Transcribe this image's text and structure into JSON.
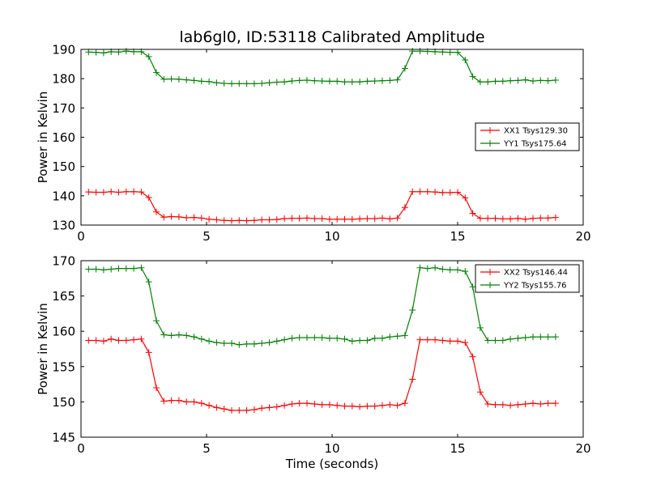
{
  "figure": {
    "title": "lab6gl0, ID:53118 Calibrated Amplitude",
    "xlabel": "Time (seconds)"
  },
  "chart_data": [
    {
      "type": "line",
      "title": "lab6gl0, ID:53118 Calibrated Amplitude",
      "xlabel": "",
      "ylabel": "Power in Kelvin",
      "xlim": [
        0,
        20
      ],
      "ylim": [
        130,
        190
      ],
      "xticks": [
        0,
        5,
        10,
        15,
        20
      ],
      "yticks": [
        130,
        140,
        150,
        160,
        170,
        180,
        190
      ],
      "legend": "center-right",
      "grid": false,
      "x": [
        0.3,
        0.6,
        0.9,
        1.2,
        1.5,
        1.8,
        2.1,
        2.4,
        2.7,
        3.0,
        3.3,
        3.6,
        3.9,
        4.2,
        4.5,
        4.8,
        5.1,
        5.4,
        5.7,
        6.0,
        6.3,
        6.6,
        6.9,
        7.2,
        7.5,
        7.8,
        8.1,
        8.4,
        8.7,
        9.0,
        9.3,
        9.6,
        9.9,
        10.2,
        10.5,
        10.8,
        11.1,
        11.4,
        11.7,
        12.0,
        12.3,
        12.6,
        12.9,
        13.2,
        13.5,
        13.8,
        14.1,
        14.4,
        14.7,
        15.0,
        15.3,
        15.6,
        15.9,
        16.2,
        16.5,
        16.8,
        17.1,
        17.4,
        17.7,
        18.0,
        18.3,
        18.6,
        18.9
      ],
      "series": [
        {
          "name": "XX1 Tsys129.30",
          "color": "#ff0000",
          "values": [
            141.3,
            141.2,
            141.2,
            141.4,
            141.2,
            141.4,
            141.4,
            141.3,
            139.4,
            134.5,
            132.7,
            132.9,
            132.8,
            132.5,
            132.6,
            132.4,
            132.0,
            131.8,
            131.6,
            131.5,
            131.6,
            131.5,
            131.6,
            131.8,
            131.8,
            131.9,
            132.2,
            132.3,
            132.3,
            132.4,
            132.2,
            132.2,
            132.0,
            132.0,
            132.0,
            132.0,
            132.1,
            132.2,
            132.2,
            132.4,
            132.1,
            132.4,
            136.0,
            141.4,
            141.4,
            141.4,
            141.3,
            141.1,
            141.1,
            141.2,
            139.3,
            134.0,
            132.3,
            132.3,
            132.3,
            132.1,
            132.1,
            132.3,
            132.0,
            132.3,
            132.4,
            132.4,
            132.6
          ]
        },
        {
          "name": "YY1 Tsys175.64",
          "color": "#008000",
          "values": [
            189.1,
            189.0,
            188.8,
            189.2,
            189.1,
            189.4,
            189.2,
            189.2,
            187.5,
            182.1,
            179.8,
            179.9,
            179.8,
            179.6,
            179.4,
            179.1,
            179.0,
            178.6,
            178.4,
            178.3,
            178.3,
            178.3,
            178.3,
            178.4,
            178.6,
            178.8,
            178.9,
            179.2,
            179.4,
            179.5,
            179.3,
            179.2,
            179.1,
            179.1,
            178.9,
            178.9,
            178.9,
            179.1,
            179.2,
            179.3,
            179.4,
            179.6,
            183.5,
            189.4,
            189.4,
            189.3,
            189.2,
            189.1,
            189.0,
            189.0,
            186.4,
            180.7,
            178.9,
            178.9,
            179.1,
            179.1,
            179.3,
            179.4,
            179.6,
            179.2,
            179.4,
            179.3,
            179.5
          ]
        }
      ]
    },
    {
      "type": "line",
      "title": "",
      "xlabel": "Time (seconds)",
      "ylabel": "Power in Kelvin",
      "xlim": [
        0,
        20
      ],
      "ylim": [
        145,
        170
      ],
      "xticks": [
        0,
        5,
        10,
        15,
        20
      ],
      "yticks": [
        145,
        150,
        155,
        160,
        165,
        170
      ],
      "legend": "top-right",
      "grid": false,
      "x": [
        0.3,
        0.6,
        0.9,
        1.2,
        1.5,
        1.8,
        2.1,
        2.4,
        2.7,
        3.0,
        3.3,
        3.6,
        3.9,
        4.2,
        4.5,
        4.8,
        5.1,
        5.4,
        5.7,
        6.0,
        6.3,
        6.6,
        6.9,
        7.2,
        7.5,
        7.8,
        8.1,
        8.4,
        8.7,
        9.0,
        9.3,
        9.6,
        9.9,
        10.2,
        10.5,
        10.8,
        11.1,
        11.4,
        11.7,
        12.0,
        12.3,
        12.6,
        12.9,
        13.2,
        13.5,
        13.8,
        14.1,
        14.4,
        14.7,
        15.0,
        15.3,
        15.6,
        15.9,
        16.2,
        16.5,
        16.8,
        17.1,
        17.4,
        17.7,
        18.0,
        18.3,
        18.6,
        18.9
      ],
      "series": [
        {
          "name": "XX2 Tsys146.44",
          "color": "#ff0000",
          "values": [
            158.7,
            158.7,
            158.6,
            158.9,
            158.7,
            158.7,
            158.8,
            158.9,
            157.0,
            152.0,
            150.1,
            150.2,
            150.2,
            150.0,
            150.0,
            149.8,
            149.5,
            149.2,
            149.0,
            148.8,
            148.8,
            148.8,
            148.9,
            149.1,
            149.2,
            149.3,
            149.5,
            149.7,
            149.8,
            149.8,
            149.7,
            149.6,
            149.6,
            149.5,
            149.4,
            149.4,
            149.3,
            149.4,
            149.4,
            149.5,
            149.6,
            149.5,
            149.8,
            153.2,
            158.8,
            158.8,
            158.8,
            158.7,
            158.6,
            158.6,
            158.4,
            156.4,
            151.4,
            149.7,
            149.6,
            149.6,
            149.5,
            149.6,
            149.7,
            149.8,
            149.7,
            149.8,
            149.8
          ]
        },
        {
          "name": "YY2 Tsys155.76",
          "color": "#008000",
          "values": [
            168.8,
            168.8,
            168.7,
            168.8,
            168.9,
            168.9,
            168.9,
            169.0,
            167.0,
            161.5,
            159.5,
            159.4,
            159.5,
            159.4,
            159.2,
            158.9,
            158.6,
            158.4,
            158.3,
            158.3,
            158.1,
            158.2,
            158.2,
            158.3,
            158.4,
            158.6,
            158.8,
            159.0,
            159.1,
            159.1,
            159.1,
            159.1,
            159.0,
            159.0,
            158.9,
            158.6,
            158.7,
            158.7,
            159.0,
            159.0,
            159.2,
            159.3,
            159.4,
            163.0,
            169.0,
            168.9,
            169.0,
            168.8,
            168.7,
            168.7,
            168.5,
            166.3,
            160.5,
            158.7,
            158.7,
            158.7,
            158.9,
            159.0,
            159.1,
            159.2,
            159.2,
            159.2,
            159.2
          ]
        }
      ]
    }
  ]
}
